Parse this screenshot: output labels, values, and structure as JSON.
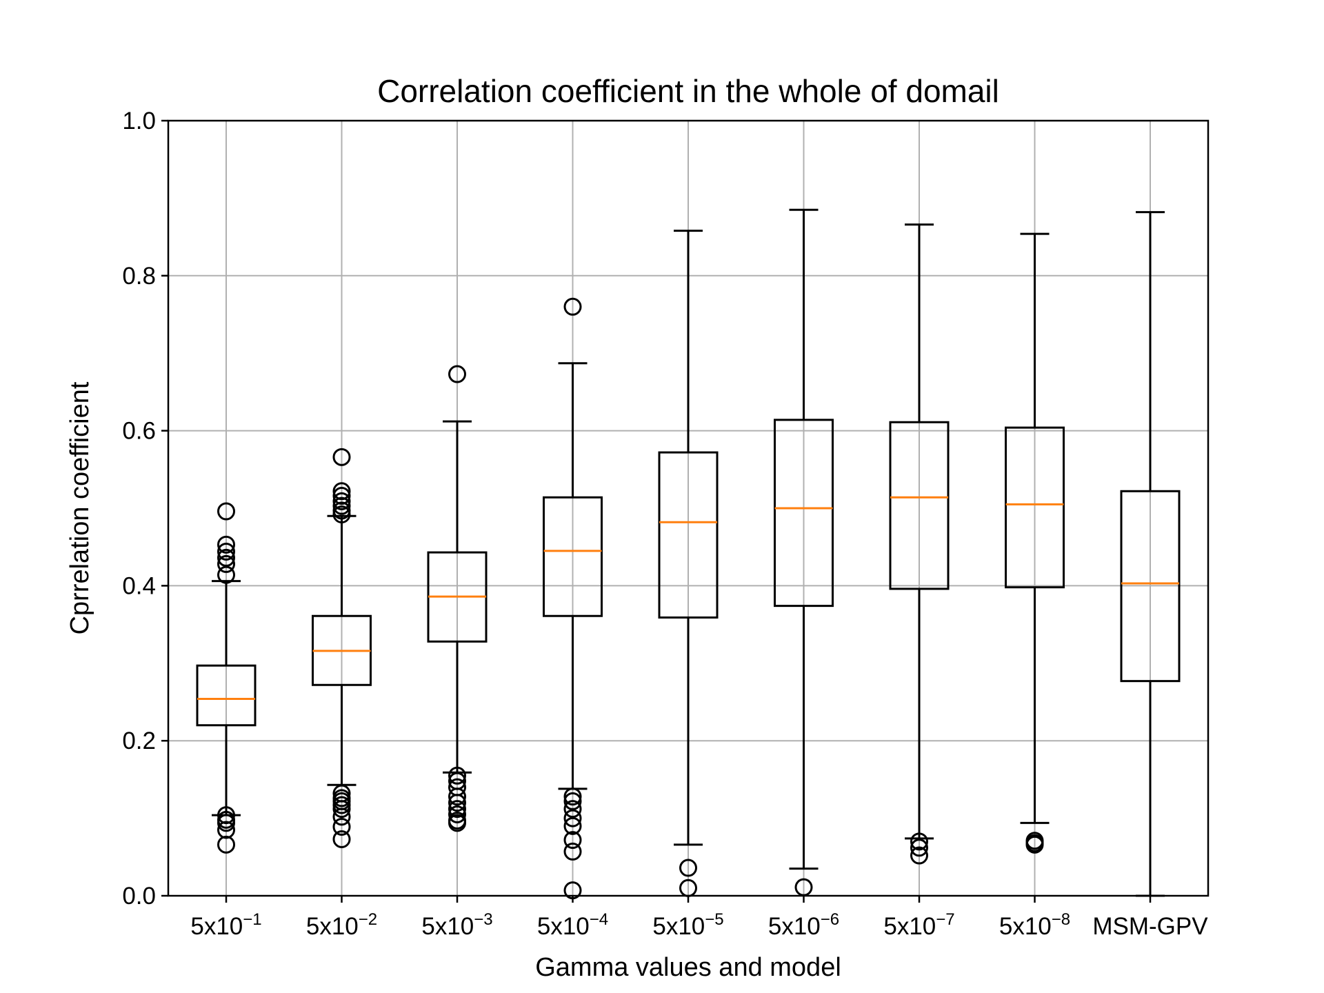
{
  "chart_data": {
    "type": "box",
    "title": "Correlation coefficient in the whole of domail",
    "xlabel": "Gamma values and model",
    "ylabel": "Cprrelation coefficient",
    "ylim": [
      0.0,
      1.0
    ],
    "yticks": [
      "0.0",
      "0.2",
      "0.4",
      "0.6",
      "0.8",
      "1.0"
    ],
    "grid": true,
    "colors": {
      "box": "#000000",
      "median": "#ff7f0e",
      "grid": "#b0b0b0"
    },
    "categories": [
      {
        "base": "5x10",
        "exp": "−1"
      },
      {
        "base": "5x10",
        "exp": "−2"
      },
      {
        "base": "5x10",
        "exp": "−3"
      },
      {
        "base": "5x10",
        "exp": "−4"
      },
      {
        "base": "5x10",
        "exp": "−5"
      },
      {
        "base": "5x10",
        "exp": "−6"
      },
      {
        "base": "5x10",
        "exp": "−7"
      },
      {
        "base": "5x10",
        "exp": "−8"
      },
      {
        "base": "MSM-GPV",
        "exp": ""
      }
    ],
    "boxes": [
      {
        "whisker_low": 0.104,
        "q1": 0.22,
        "median": 0.254,
        "q3": 0.297,
        "whisker_high": 0.406,
        "fliers": [
          0.496,
          0.453,
          0.444,
          0.436,
          0.428,
          0.414,
          0.104,
          0.098,
          0.094,
          0.085,
          0.066
        ]
      },
      {
        "whisker_low": 0.143,
        "q1": 0.272,
        "median": 0.316,
        "q3": 0.361,
        "whisker_high": 0.49,
        "fliers": [
          0.566,
          0.522,
          0.516,
          0.509,
          0.503,
          0.497,
          0.492,
          0.132,
          0.126,
          0.122,
          0.117,
          0.112,
          0.102,
          0.089,
          0.073
        ]
      },
      {
        "whisker_low": 0.159,
        "q1": 0.328,
        "median": 0.386,
        "q3": 0.443,
        "whisker_high": 0.612,
        "fliers": [
          0.673,
          0.155,
          0.148,
          0.14,
          0.128,
          0.12,
          0.112,
          0.105,
          0.097,
          0.094
        ]
      },
      {
        "whisker_low": 0.138,
        "q1": 0.361,
        "median": 0.445,
        "q3": 0.514,
        "whisker_high": 0.687,
        "fliers": [
          0.76,
          0.128,
          0.122,
          0.112,
          0.1,
          0.09,
          0.072,
          0.057,
          0.007
        ]
      },
      {
        "whisker_low": 0.066,
        "q1": 0.359,
        "median": 0.482,
        "q3": 0.572,
        "whisker_high": 0.858,
        "fliers": [
          0.036,
          0.01
        ]
      },
      {
        "whisker_low": 0.035,
        "q1": 0.374,
        "median": 0.5,
        "q3": 0.614,
        "whisker_high": 0.885,
        "fliers": [
          0.011
        ]
      },
      {
        "whisker_low": 0.074,
        "q1": 0.396,
        "median": 0.514,
        "q3": 0.611,
        "whisker_high": 0.866,
        "fliers": [
          0.07,
          0.062,
          0.052
        ]
      },
      {
        "whisker_low": 0.094,
        "q1": 0.398,
        "median": 0.505,
        "q3": 0.604,
        "whisker_high": 0.854,
        "fliers": [
          0.071,
          0.068,
          0.066
        ]
      },
      {
        "whisker_low": 0.0,
        "q1": 0.277,
        "median": 0.403,
        "q3": 0.522,
        "whisker_high": 0.882,
        "fliers": []
      }
    ]
  }
}
